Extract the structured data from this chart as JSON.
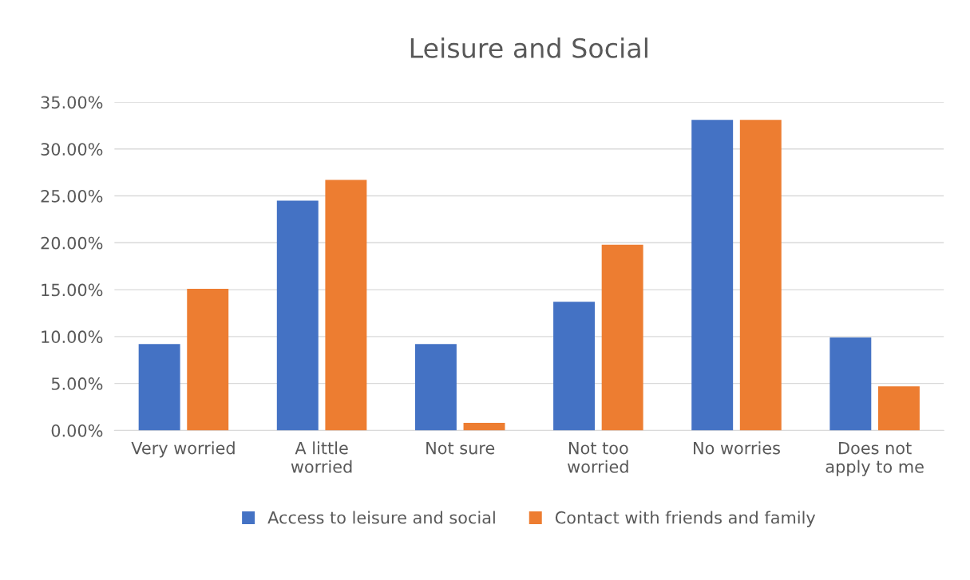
{
  "chart_data": {
    "type": "bar",
    "title": "Leisure and Social",
    "categories": [
      "Very worried",
      "A little\nworried",
      "Not sure",
      "Not too\nworried",
      "No worries",
      "Does not\napply to me"
    ],
    "series": [
      {
        "name": "Access to leisure and social",
        "color": "#4472c4",
        "values": [
          0.092,
          0.245,
          0.092,
          0.137,
          0.331,
          0.099
        ]
      },
      {
        "name": "Contact with friends and family",
        "color": "#ed7d31",
        "values": [
          0.151,
          0.267,
          0.008,
          0.198,
          0.331,
          0.047
        ]
      }
    ],
    "ylim": [
      0,
      0.35
    ],
    "yticks": [
      {
        "value": 0,
        "label": "0.00%"
      },
      {
        "value": 0.05,
        "label": "5.00%"
      },
      {
        "value": 0.1,
        "label": "10.00%"
      },
      {
        "value": 0.15,
        "label": "15.00%"
      },
      {
        "value": 0.2,
        "label": "20.00%"
      },
      {
        "value": 0.25,
        "label": "25.00%"
      },
      {
        "value": 0.3,
        "label": "30.00%"
      },
      {
        "value": 0.35,
        "label": "35.00%"
      }
    ],
    "grid": "y",
    "legend": "bottom"
  }
}
